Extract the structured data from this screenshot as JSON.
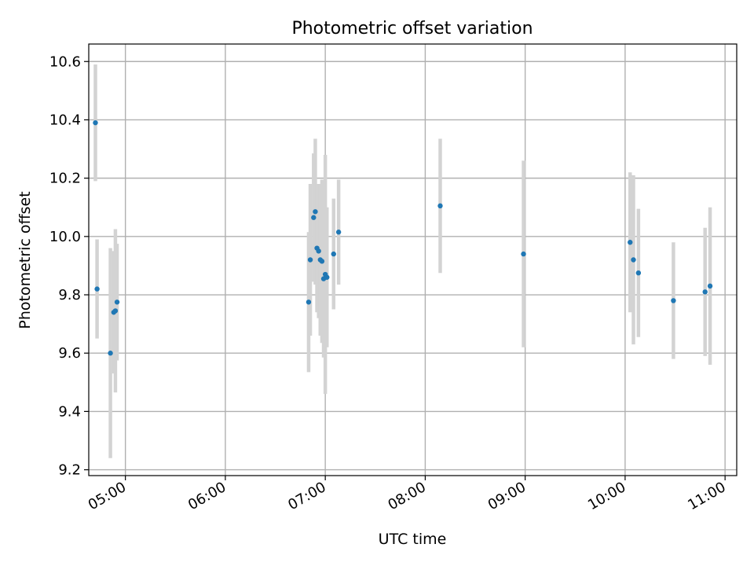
{
  "chart_data": {
    "type": "scatter",
    "title": "Photometric offset variation",
    "xlabel": "UTC time",
    "ylabel": "Photometric offset",
    "x_tick_labels": [
      "05:00",
      "06:00",
      "07:00",
      "08:00",
      "09:00",
      "10:00",
      "11:00"
    ],
    "x_ticks": [
      "05:00",
      "06:00",
      "07:00",
      "08:00",
      "09:00",
      "10:00",
      "11:00"
    ],
    "y_ticks": [
      9.2,
      9.4,
      9.6,
      9.8,
      10.0,
      10.2,
      10.4,
      10.6
    ],
    "y_tick_labels": [
      "9.2",
      "9.4",
      "9.6",
      "9.8",
      "10.0",
      "10.2",
      "10.4",
      "10.6"
    ],
    "xlim": [
      "04:38",
      "11:07"
    ],
    "ylim": [
      9.18,
      10.66
    ],
    "grid": true,
    "series": [
      {
        "marker_color": "#1f77b4",
        "errorbar_color": "#d3d3d3",
        "points": [
          {
            "x": "04:42",
            "y": 10.39,
            "err": 0.2
          },
          {
            "x": "04:43",
            "y": 9.82,
            "err": 0.17
          },
          {
            "x": "04:51",
            "y": 9.6,
            "err": 0.36
          },
          {
            "x": "04:53",
            "y": 9.74,
            "err": 0.21
          },
          {
            "x": "04:54",
            "y": 9.745,
            "err": 0.28
          },
          {
            "x": "04:55",
            "y": 9.775,
            "err": 0.2
          },
          {
            "x": "06:50",
            "y": 9.775,
            "err": 0.24
          },
          {
            "x": "06:51",
            "y": 9.92,
            "err": 0.26
          },
          {
            "x": "06:53",
            "y": 10.065,
            "err": 0.22
          },
          {
            "x": "06:54",
            "y": 10.085,
            "err": 0.25
          },
          {
            "x": "06:55",
            "y": 9.96,
            "err": 0.22
          },
          {
            "x": "06:56",
            "y": 9.95,
            "err": 0.23
          },
          {
            "x": "06:57",
            "y": 9.92,
            "err": 0.26
          },
          {
            "x": "06:58",
            "y": 9.915,
            "err": 0.28
          },
          {
            "x": "06:59",
            "y": 9.855,
            "err": 0.27
          },
          {
            "x": "07:00",
            "y": 9.87,
            "err": 0.41
          },
          {
            "x": "07:01",
            "y": 9.86,
            "err": 0.24
          },
          {
            "x": "07:05",
            "y": 9.94,
            "err": 0.19
          },
          {
            "x": "07:08",
            "y": 10.015,
            "err": 0.18
          },
          {
            "x": "08:09",
            "y": 10.105,
            "err": 0.23
          },
          {
            "x": "08:59",
            "y": 9.94,
            "err": 0.32
          },
          {
            "x": "10:03",
            "y": 9.98,
            "err": 0.24
          },
          {
            "x": "10:05",
            "y": 9.92,
            "err": 0.29
          },
          {
            "x": "10:08",
            "y": 9.875,
            "err": 0.22
          },
          {
            "x": "10:29",
            "y": 9.78,
            "err": 0.2
          },
          {
            "x": "10:48",
            "y": 9.81,
            "err": 0.22
          },
          {
            "x": "10:51",
            "y": 9.83,
            "err": 0.27
          }
        ]
      }
    ]
  }
}
